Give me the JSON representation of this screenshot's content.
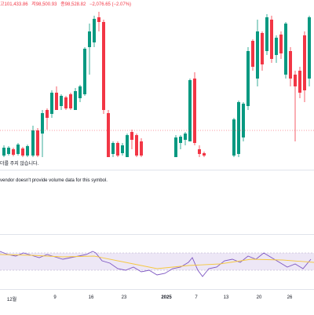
{
  "ohlc": {
    "high": "고101,433.86",
    "low": "저98,500.93",
    "close": "종98,528.82",
    "change": "−2,076.65 (−2.07%)"
  },
  "messages": {
    "no_data": "더를 주지 않습니다.",
    "volume": "vendor doesn't provide volume data for this symbol."
  },
  "time_axis": [
    "12월",
    "9",
    "16",
    "23",
    "2025",
    "7",
    "13",
    "20",
    "26"
  ],
  "colors": {
    "up": "#089981",
    "down": "#f23645",
    "rsi_line": "#7e57c2",
    "rsi_ma": "#f5c842",
    "rsi_band": "#ede7f6",
    "grid": "#e0e3eb"
  }
}
